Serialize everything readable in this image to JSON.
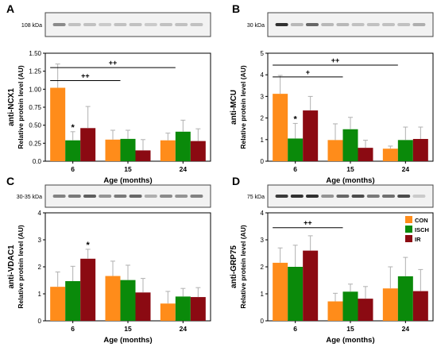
{
  "legend": {
    "labels": [
      "CON",
      "ISCH",
      "IR"
    ]
  },
  "colors": {
    "CON": "#FF8C1A",
    "ISCH": "#0A8A0A",
    "IR": "#8B0A12",
    "error": "#b0b0b0",
    "text": "#000000"
  },
  "chart_data": [
    {
      "panel": "A",
      "type": "bar",
      "blot_label": "108 kDa",
      "title": "anti-NCX1",
      "ylabel": "Relative protein level (AU)",
      "xlabel": "Age (months)",
      "categories": [
        "6",
        "15",
        "24"
      ],
      "ylim": [
        0,
        1.5
      ],
      "yticks": [
        "0.0",
        "0.25",
        "0.50",
        "0.75",
        "1.00",
        "1.25",
        "1.50"
      ],
      "series": [
        {
          "name": "CON",
          "values": [
            1.02,
            0.3,
            0.29
          ],
          "errors": [
            0.33,
            0.13,
            0.1
          ]
        },
        {
          "name": "ISCH",
          "values": [
            0.29,
            0.31,
            0.41
          ],
          "errors": [
            0.12,
            0.12,
            0.16
          ]
        },
        {
          "name": "IR",
          "values": [
            0.46,
            0.15,
            0.28
          ],
          "errors": [
            0.3,
            0.15,
            0.17
          ]
        }
      ],
      "stars": [
        {
          "category": 0,
          "series": 1,
          "text": "*"
        }
      ],
      "brackets": [
        {
          "from": 0,
          "to": 1,
          "y": 1.12,
          "text": "++"
        },
        {
          "from": 0,
          "to": 2,
          "y": 1.3,
          "text": "++"
        }
      ]
    },
    {
      "panel": "B",
      "type": "bar",
      "blot_label": "30 kDa",
      "title": "anti-MCU",
      "ylabel": "Relative protein level (AU)",
      "xlabel": "Age (months)",
      "categories": [
        "6",
        "15",
        "24"
      ],
      "ylim": [
        0,
        5
      ],
      "yticks": [
        "0",
        "1",
        "2",
        "3",
        "4",
        "5"
      ],
      "series": [
        {
          "name": "CON",
          "values": [
            3.12,
            0.98,
            0.58
          ],
          "errors": [
            0.85,
            0.75,
            0.12
          ]
        },
        {
          "name": "ISCH",
          "values": [
            1.05,
            1.48,
            0.98
          ],
          "errors": [
            0.7,
            0.55,
            0.6
          ]
        },
        {
          "name": "IR",
          "values": [
            2.35,
            0.62,
            1.03
          ],
          "errors": [
            0.65,
            0.35,
            0.55
          ]
        }
      ],
      "stars": [
        {
          "category": 0,
          "series": 1,
          "text": "*"
        }
      ],
      "brackets": [
        {
          "from": 0,
          "to": 1,
          "y": 3.9,
          "text": "+"
        },
        {
          "from": 0,
          "to": 2,
          "y": 4.45,
          "text": "++"
        }
      ]
    },
    {
      "panel": "C",
      "type": "bar",
      "blot_label": "30-35 kDa",
      "title": "anti-VDAC1",
      "ylabel": "Relative protein level (AU)",
      "xlabel": "Age (months)",
      "categories": [
        "6",
        "15",
        "24"
      ],
      "ylim": [
        0,
        4
      ],
      "yticks": [
        "0",
        "1",
        "2",
        "3",
        "4"
      ],
      "series": [
        {
          "name": "CON",
          "values": [
            1.26,
            1.66,
            0.64
          ],
          "errors": [
            0.55,
            0.55,
            0.45
          ]
        },
        {
          "name": "ISCH",
          "values": [
            1.47,
            1.51,
            0.9
          ],
          "errors": [
            0.55,
            0.55,
            0.3
          ]
        },
        {
          "name": "IR",
          "values": [
            2.3,
            1.05,
            0.88
          ],
          "errors": [
            0.35,
            0.52,
            0.35
          ]
        }
      ],
      "stars": [
        {
          "category": 0,
          "series": 2,
          "text": "*"
        }
      ],
      "brackets": []
    },
    {
      "panel": "D",
      "type": "bar",
      "blot_label": "75 kDa",
      "title": "anti-GRP75",
      "ylabel": "Relative protein level (AU)",
      "xlabel": "Age (months)",
      "categories": [
        "6",
        "15",
        "24"
      ],
      "ylim": [
        0,
        4
      ],
      "yticks": [
        "0",
        "1",
        "2",
        "3",
        "4"
      ],
      "series": [
        {
          "name": "CON",
          "values": [
            2.15,
            0.72,
            1.2
          ],
          "errors": [
            0.55,
            0.3,
            0.8
          ]
        },
        {
          "name": "ISCH",
          "values": [
            2.0,
            1.08,
            1.65
          ],
          "errors": [
            0.8,
            0.28,
            0.7
          ]
        },
        {
          "name": "IR",
          "values": [
            2.6,
            0.82,
            1.1
          ],
          "errors": [
            0.55,
            0.45,
            0.8
          ]
        }
      ],
      "stars": [],
      "brackets": [
        {
          "from": 0,
          "to": 1,
          "y": 3.45,
          "text": "++"
        }
      ]
    }
  ]
}
